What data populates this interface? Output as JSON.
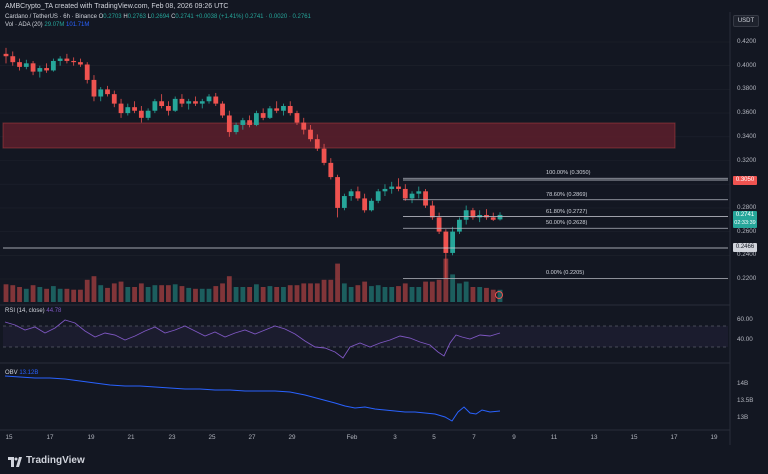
{
  "header": {
    "publisher": "AMBCrypto_TA created with TradingView.com, Feb 08, 2026 09:26 UTC"
  },
  "legend": {
    "symbol": "Cardano / TetherUS · 6h · Binance",
    "o_label": "O",
    "o_value": "0.2703",
    "h_label": "H",
    "h_value": "0.2763",
    "l_label": "L",
    "l_value": "0.2694",
    "c_label": "C",
    "c_value": "0.2741",
    "change": "+0.0038 (+1.41%)",
    "extra": "0.2741 · 0.0020 · 0.2761",
    "vol_label": "Vol · ADA (20)",
    "vol_value1": "29.07M",
    "vol_value2": "101.71M",
    "rsi_label": "RSI (14, close)",
    "rsi_value": "44.78",
    "obv_label": "OBV",
    "obv_value": "13.12B"
  },
  "currency_button": "USDT",
  "price_axis": [
    "0.4200",
    "0.4000",
    "0.3800",
    "0.3600",
    "0.3400",
    "0.3200",
    "0.3000",
    "0.2800",
    "0.2600",
    "0.2400",
    "0.2200"
  ],
  "price_badges": {
    "level_3050": "0.3050",
    "current": "0.2741",
    "countdown": "02:33:39",
    "level_2466": "0.2466"
  },
  "fib_levels": [
    {
      "label": "100.00% (0.3050)",
      "price": 0.305
    },
    {
      "label": "78.60% (0.2869)",
      "price": 0.2869
    },
    {
      "label": "61.80% (0.2727)",
      "price": 0.2727
    },
    {
      "label": "50.00% (0.2628)",
      "price": 0.2628
    },
    {
      "label": "0.00% (0.2205)",
      "price": 0.2205
    }
  ],
  "rsi_axis": [
    "60.00",
    "40.00"
  ],
  "obv_axis": [
    "14B",
    "13.5B",
    "13B"
  ],
  "x_axis": [
    "15",
    "17",
    "19",
    "21",
    "23",
    "25",
    "27",
    "29",
    "Feb",
    "3",
    "5",
    "7",
    "9",
    "11",
    "13",
    "15",
    "17",
    "19"
  ],
  "footer": {
    "brand": "TradingView"
  },
  "colors": {
    "up": "#26a69a",
    "down": "#ef5350",
    "bg": "#131722",
    "zone": "#5d1f2c",
    "rsi": "#7e57c2",
    "obv": "#2962ff"
  },
  "chart_data": {
    "type": "candlestick",
    "price_range": [
      0.215,
      0.43
    ],
    "candles": [
      [
        0.41,
        0.415,
        0.402,
        0.408
      ],
      [
        0.408,
        0.412,
        0.4,
        0.403
      ],
      [
        0.403,
        0.406,
        0.396,
        0.399
      ],
      [
        0.399,
        0.405,
        0.397,
        0.402
      ],
      [
        0.402,
        0.404,
        0.392,
        0.395
      ],
      [
        0.395,
        0.4,
        0.39,
        0.398
      ],
      [
        0.398,
        0.402,
        0.394,
        0.396
      ],
      [
        0.396,
        0.406,
        0.395,
        0.404
      ],
      [
        0.404,
        0.408,
        0.4,
        0.406
      ],
      [
        0.406,
        0.41,
        0.402,
        0.404
      ],
      [
        0.404,
        0.407,
        0.4,
        0.403
      ],
      [
        0.403,
        0.406,
        0.399,
        0.401
      ],
      [
        0.401,
        0.403,
        0.385,
        0.388
      ],
      [
        0.388,
        0.392,
        0.37,
        0.374
      ],
      [
        0.374,
        0.382,
        0.37,
        0.38
      ],
      [
        0.38,
        0.383,
        0.374,
        0.376
      ],
      [
        0.376,
        0.379,
        0.365,
        0.368
      ],
      [
        0.368,
        0.372,
        0.356,
        0.36
      ],
      [
        0.36,
        0.368,
        0.358,
        0.365
      ],
      [
        0.365,
        0.37,
        0.36,
        0.362
      ],
      [
        0.362,
        0.366,
        0.352,
        0.356
      ],
      [
        0.356,
        0.364,
        0.354,
        0.362
      ],
      [
        0.362,
        0.372,
        0.36,
        0.37
      ],
      [
        0.37,
        0.376,
        0.364,
        0.366
      ],
      [
        0.366,
        0.37,
        0.358,
        0.362
      ],
      [
        0.362,
        0.374,
        0.361,
        0.372
      ],
      [
        0.372,
        0.376,
        0.365,
        0.368
      ],
      [
        0.368,
        0.372,
        0.363,
        0.37
      ],
      [
        0.37,
        0.374,
        0.366,
        0.368
      ],
      [
        0.368,
        0.372,
        0.364,
        0.37
      ],
      [
        0.37,
        0.376,
        0.368,
        0.374
      ],
      [
        0.374,
        0.377,
        0.366,
        0.368
      ],
      [
        0.368,
        0.37,
        0.356,
        0.358
      ],
      [
        0.358,
        0.362,
        0.34,
        0.344
      ],
      [
        0.344,
        0.352,
        0.342,
        0.35
      ],
      [
        0.35,
        0.356,
        0.346,
        0.354
      ],
      [
        0.354,
        0.358,
        0.348,
        0.35
      ],
      [
        0.35,
        0.362,
        0.349,
        0.36
      ],
      [
        0.36,
        0.364,
        0.354,
        0.356
      ],
      [
        0.356,
        0.366,
        0.355,
        0.364
      ],
      [
        0.364,
        0.37,
        0.36,
        0.362
      ],
      [
        0.362,
        0.368,
        0.358,
        0.366
      ],
      [
        0.366,
        0.37,
        0.358,
        0.36
      ],
      [
        0.36,
        0.362,
        0.35,
        0.352
      ],
      [
        0.352,
        0.356,
        0.342,
        0.346
      ],
      [
        0.346,
        0.35,
        0.336,
        0.338
      ],
      [
        0.338,
        0.342,
        0.328,
        0.33
      ],
      [
        0.33,
        0.334,
        0.316,
        0.318
      ],
      [
        0.318,
        0.322,
        0.304,
        0.306
      ],
      [
        0.306,
        0.308,
        0.272,
        0.28
      ],
      [
        0.28,
        0.292,
        0.278,
        0.29
      ],
      [
        0.29,
        0.296,
        0.286,
        0.294
      ],
      [
        0.294,
        0.298,
        0.286,
        0.288
      ],
      [
        0.288,
        0.292,
        0.276,
        0.278
      ],
      [
        0.278,
        0.288,
        0.277,
        0.286
      ],
      [
        0.286,
        0.296,
        0.284,
        0.294
      ],
      [
        0.294,
        0.3,
        0.29,
        0.296
      ],
      [
        0.296,
        0.302,
        0.292,
        0.298
      ],
      [
        0.298,
        0.305,
        0.294,
        0.296
      ],
      [
        0.296,
        0.3,
        0.286,
        0.288
      ],
      [
        0.288,
        0.294,
        0.284,
        0.292
      ],
      [
        0.292,
        0.298,
        0.288,
        0.294
      ],
      [
        0.294,
        0.296,
        0.28,
        0.282
      ],
      [
        0.282,
        0.286,
        0.27,
        0.272
      ],
      [
        0.272,
        0.276,
        0.258,
        0.26
      ],
      [
        0.26,
        0.262,
        0.2205,
        0.242
      ],
      [
        0.242,
        0.264,
        0.24,
        0.26
      ],
      [
        0.26,
        0.272,
        0.258,
        0.27
      ],
      [
        0.27,
        0.282,
        0.266,
        0.278
      ],
      [
        0.278,
        0.28,
        0.27,
        0.272
      ],
      [
        0.272,
        0.278,
        0.268,
        0.274
      ],
      [
        0.274,
        0.279,
        0.27,
        0.272
      ],
      [
        0.272,
        0.276,
        0.269,
        0.27
      ],
      [
        0.2703,
        0.2763,
        0.2694,
        0.2741
      ]
    ]
  }
}
